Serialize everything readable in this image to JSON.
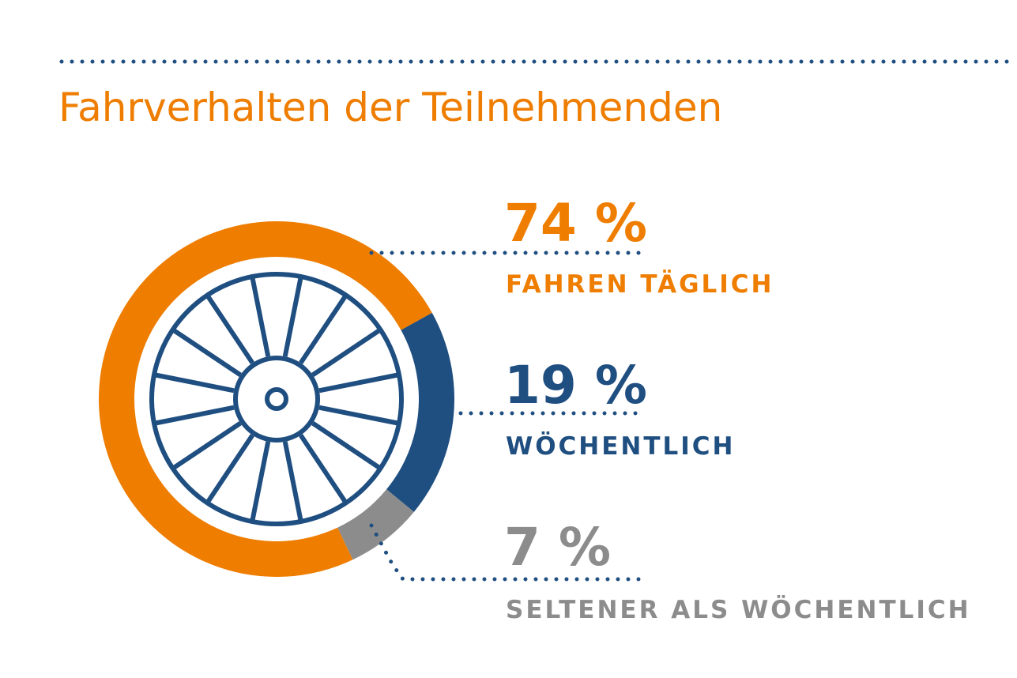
{
  "chart_data": {
    "type": "pie",
    "title": "Fahrverhalten der Teilnehmenden",
    "categories": [
      "FAHREN TÄGLICH",
      "WÖCHENTLICH",
      "SELTENER ALS WÖCHENTLICH"
    ],
    "values": [
      74,
      19,
      7
    ],
    "value_labels": [
      "74 %",
      "19 %",
      "7 %"
    ],
    "colors": [
      "#ee7d00",
      "#1f4e80",
      "#8c8c8c"
    ]
  }
}
